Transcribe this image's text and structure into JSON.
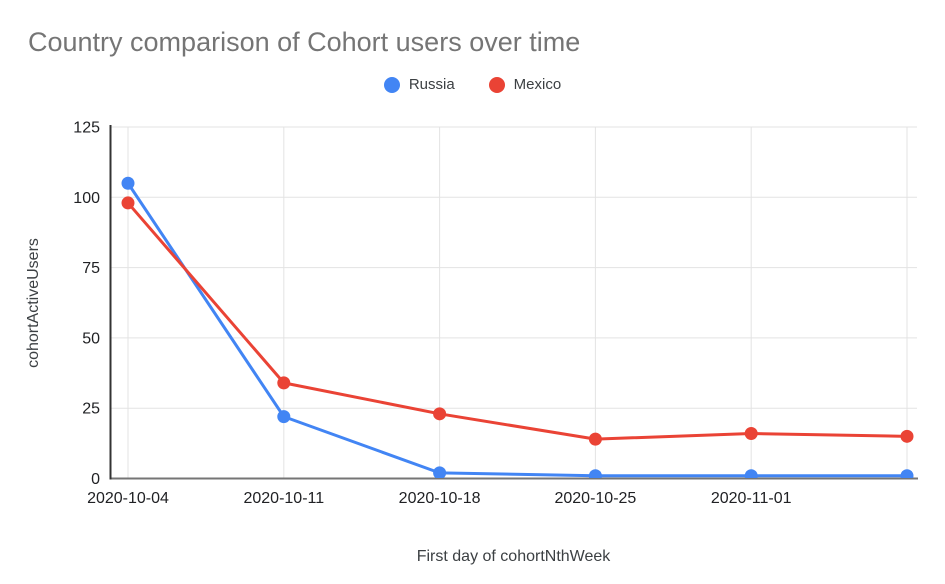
{
  "chart_data": {
    "type": "line",
    "title": "Country comparison of Cohort users over time",
    "xlabel": "First day of cohortNthWeek",
    "ylabel": "cohortActiveUsers",
    "categories": [
      "2020-10-04",
      "2020-10-11",
      "2020-10-18",
      "2020-10-25",
      "2020-11-01",
      ""
    ],
    "series": [
      {
        "name": "Russia",
        "color": "#4285f4",
        "values": [
          105,
          22,
          2,
          1,
          1,
          1
        ]
      },
      {
        "name": "Mexico",
        "color": "#ea4335",
        "values": [
          98,
          34,
          23,
          14,
          16,
          15
        ]
      }
    ],
    "ylim": [
      0,
      125
    ],
    "yticks": [
      0,
      25,
      50,
      75,
      100,
      125
    ],
    "grid": true,
    "legend_position": "top-center",
    "styles": {
      "background": "#ffffff",
      "title_color": "#757575",
      "tick_label_color": "#202124",
      "axis_title_color": "#3c4043",
      "gridline_color": "#e3e3e3",
      "y_axis_line_color": "#333333",
      "x_axis_line_color": "#757575"
    }
  }
}
